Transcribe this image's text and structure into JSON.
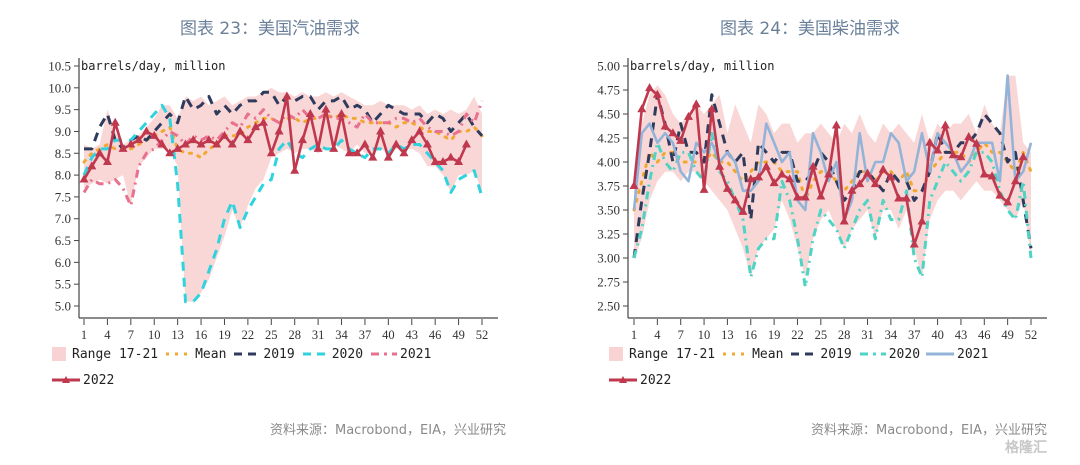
{
  "charts": [
    {
      "title": "图表 23：美国汽油需求",
      "unit_label": "barrels/day, million",
      "source": "资料来源：Macrobond，EIA，兴业研究",
      "legend": [
        "Range 17-21",
        "Mean",
        "2019",
        "2020",
        "2021",
        "2022"
      ]
    },
    {
      "title": "图表 24：美国柴油需求",
      "unit_label": "barrels/day, million",
      "source": "资料来源：Macrobond，EIA，兴业研究",
      "legend": [
        "Range 17-21",
        "Mean",
        "2019",
        "2020",
        "2021",
        "2022"
      ]
    }
  ],
  "watermark": "格隆汇",
  "colors": {
    "range": "#f9d3d3",
    "mean": "#f0a830",
    "y2019": "#2f3b5c",
    "y2020_gas": "#2fd3de",
    "y2020_dsl": "#4dd4c4",
    "y2021_gas": "#e8718f",
    "y2021_dsl": "#93b4d8",
    "y2022": "#c0384e"
  },
  "chart_data": [
    {
      "type": "line",
      "title": "图表 23：美国汽油需求",
      "ylabel": "barrels/day, million",
      "xlabel": "",
      "ylim": [
        5.0,
        10.5
      ],
      "yticks": [
        "10.5",
        "10.0",
        "9.5",
        "9.0",
        "8.5",
        "8.0",
        "7.5",
        "7.0",
        "6.5",
        "6.0",
        "5.5",
        "5.0"
      ],
      "xticks": [
        "1",
        "4",
        "7",
        "10",
        "13",
        "16",
        "19",
        "22",
        "25",
        "28",
        "31",
        "34",
        "37",
        "40",
        "43",
        "46",
        "49",
        "52"
      ],
      "x": [
        1,
        2,
        3,
        4,
        5,
        6,
        7,
        8,
        9,
        10,
        11,
        12,
        13,
        14,
        15,
        16,
        17,
        18,
        19,
        20,
        21,
        22,
        23,
        24,
        25,
        26,
        27,
        28,
        29,
        30,
        31,
        32,
        33,
        34,
        35,
        36,
        37,
        38,
        39,
        40,
        41,
        42,
        43,
        44,
        45,
        46,
        47,
        48,
        49,
        50,
        51,
        52
      ],
      "range_low": [
        7.7,
        7.8,
        7.9,
        7.8,
        7.9,
        8.0,
        7.3,
        8.2,
        8.4,
        8.6,
        8.6,
        8.6,
        8.2,
        5.1,
        5.1,
        5.3,
        5.6,
        6.1,
        6.6,
        7.2,
        6.8,
        7.3,
        7.7,
        7.9,
        8.4,
        8.5,
        8.6,
        8.5,
        8.6,
        8.6,
        8.5,
        8.6,
        8.7,
        8.6,
        8.5,
        8.7,
        8.5,
        8.5,
        8.6,
        8.5,
        8.6,
        8.6,
        8.6,
        8.5,
        8.2,
        8.2,
        8.0,
        7.6,
        8.0,
        8.0,
        8.1,
        7.6
      ],
      "range_high": [
        8.7,
        8.6,
        8.7,
        9.5,
        9.0,
        8.7,
        8.8,
        8.9,
        9.1,
        9.3,
        9.6,
        9.6,
        9.3,
        9.8,
        9.7,
        9.8,
        9.6,
        9.7,
        9.8,
        9.6,
        9.7,
        9.8,
        9.8,
        9.9,
        10.0,
        9.9,
        9.9,
        9.8,
        9.9,
        9.8,
        9.8,
        9.9,
        9.8,
        9.9,
        9.8,
        9.7,
        9.6,
        9.6,
        9.7,
        9.6,
        9.6,
        9.6,
        9.5,
        9.6,
        9.4,
        9.5,
        9.4,
        9.5,
        9.4,
        9.5,
        9.8,
        9.4
      ],
      "series": [
        {
          "name": "Mean",
          "values": [
            8.3,
            8.5,
            8.6,
            8.7,
            8.6,
            8.6,
            8.6,
            8.7,
            8.8,
            8.9,
            9.0,
            9.1,
            8.6,
            8.5,
            8.5,
            8.4,
            8.6,
            8.7,
            8.9,
            8.9,
            8.9,
            9.1,
            9.2,
            9.3,
            9.3,
            9.2,
            9.3,
            9.3,
            9.2,
            9.3,
            9.3,
            9.4,
            9.3,
            9.4,
            9.3,
            9.3,
            9.2,
            9.2,
            9.2,
            9.2,
            9.1,
            9.2,
            9.2,
            9.1,
            9.0,
            9.0,
            8.9,
            8.8,
            9.0,
            9.0,
            9.1,
            8.9
          ]
        },
        {
          "name": "2019",
          "values": [
            8.6,
            8.6,
            9.1,
            9.4,
            8.8,
            8.6,
            8.8,
            8.9,
            8.8,
            9.0,
            9.2,
            9.4,
            9.2,
            9.8,
            9.5,
            9.6,
            9.8,
            9.4,
            9.6,
            9.4,
            9.6,
            9.7,
            9.7,
            9.9,
            9.9,
            9.6,
            9.8,
            9.7,
            9.8,
            9.8,
            9.5,
            9.7,
            9.7,
            9.8,
            9.5,
            9.6,
            9.5,
            9.2,
            9.4,
            9.6,
            9.5,
            9.4,
            9.4,
            9.4,
            9.2,
            9.4,
            9.3,
            9.0,
            9.2,
            9.4,
            9.1,
            8.9
          ]
        },
        {
          "name": "2020",
          "values": [
            8.0,
            8.4,
            8.6,
            8.6,
            8.8,
            8.8,
            8.8,
            9.0,
            9.2,
            9.4,
            9.6,
            9.3,
            7.8,
            5.1,
            5.1,
            5.3,
            5.8,
            6.3,
            7.0,
            7.4,
            6.8,
            7.2,
            7.5,
            7.8,
            7.9,
            8.6,
            8.8,
            8.5,
            8.4,
            8.6,
            8.7,
            8.6,
            8.6,
            8.8,
            8.6,
            8.5,
            8.4,
            8.6,
            8.6,
            8.5,
            8.7,
            8.6,
            8.7,
            8.7,
            8.5,
            8.3,
            8.1,
            7.6,
            7.9,
            8.0,
            8.1,
            7.5
          ]
        },
        {
          "name": "2021",
          "values": [
            7.6,
            7.9,
            7.8,
            7.8,
            7.9,
            7.7,
            7.3,
            8.2,
            8.5,
            8.6,
            8.8,
            9.0,
            8.9,
            8.7,
            8.9,
            8.8,
            8.9,
            8.8,
            9.0,
            9.2,
            9.1,
            9.4,
            9.3,
            9.5,
            9.3,
            9.2,
            9.4,
            9.3,
            9.5,
            9.3,
            9.3,
            9.4,
            9.3,
            9.3,
            9.2,
            9.1,
            9.4,
            9.2,
            9.2,
            9.2,
            9.3,
            9.3,
            9.2,
            9.3,
            9.1,
            9.0,
            9.0,
            8.9,
            9.0,
            9.4,
            9.2,
            9.7
          ]
        },
        {
          "name": "2022",
          "values": [
            7.9,
            8.2,
            8.5,
            8.3,
            9.2,
            8.6,
            8.7,
            8.8,
            9.0,
            8.9,
            8.7,
            8.5,
            8.6,
            8.7,
            8.8,
            8.7,
            8.8,
            8.7,
            8.9,
            8.7,
            9.0,
            8.8,
            9.1,
            9.2,
            8.5,
            9.0,
            9.8,
            8.1,
            8.8,
            9.4,
            8.6,
            9.5,
            8.6,
            9.4,
            8.5,
            8.5,
            8.7,
            8.4,
            9.0,
            8.4,
            8.7,
            8.5,
            8.8,
            9.0,
            8.7,
            8.3,
            8.3,
            8.4,
            8.3,
            8.7
          ]
        }
      ],
      "legend": [
        "Range 17-21",
        "Mean",
        "2019",
        "2020",
        "2021",
        "2022"
      ],
      "legend_position": "bottom",
      "grid": false
    },
    {
      "type": "line",
      "title": "图表 24：美国柴油需求",
      "ylabel": "barrels/day, million",
      "xlabel": "",
      "ylim": [
        2.5,
        5.0
      ],
      "yticks": [
        "5.00",
        "4.75",
        "4.50",
        "4.25",
        "4.00",
        "3.75",
        "3.50",
        "3.25",
        "3.00",
        "2.75",
        "2.50"
      ],
      "xticks": [
        "1",
        "4",
        "7",
        "10",
        "13",
        "16",
        "19",
        "22",
        "25",
        "28",
        "31",
        "34",
        "37",
        "40",
        "43",
        "46",
        "49",
        "52"
      ],
      "x": [
        1,
        2,
        3,
        4,
        5,
        6,
        7,
        8,
        9,
        10,
        11,
        12,
        13,
        14,
        15,
        16,
        17,
        18,
        19,
        20,
        21,
        22,
        23,
        24,
        25,
        26,
        27,
        28,
        29,
        30,
        31,
        32,
        33,
        34,
        35,
        36,
        37,
        38,
        39,
        40,
        41,
        42,
        43,
        44,
        45,
        46,
        47,
        48,
        49,
        50,
        51,
        52
      ],
      "range_low": [
        3.0,
        3.2,
        3.6,
        3.8,
        3.9,
        3.9,
        3.8,
        3.9,
        3.9,
        3.8,
        3.7,
        3.6,
        3.5,
        3.3,
        3.1,
        2.8,
        3.1,
        3.2,
        3.3,
        3.6,
        3.4,
        3.1,
        2.8,
        3.2,
        3.4,
        3.5,
        3.3,
        3.1,
        3.3,
        3.4,
        3.5,
        3.2,
        3.5,
        3.5,
        3.3,
        3.5,
        3.1,
        2.8,
        3.4,
        3.6,
        3.7,
        3.7,
        3.6,
        3.7,
        3.8,
        3.7,
        3.7,
        3.6,
        3.5,
        3.4,
        3.6,
        3.0
      ],
      "range_high": [
        3.8,
        4.4,
        4.7,
        4.8,
        4.7,
        4.5,
        4.4,
        4.5,
        4.6,
        4.5,
        4.6,
        4.7,
        4.3,
        4.6,
        4.4,
        4.2,
        4.6,
        4.5,
        4.3,
        4.4,
        4.4,
        4.2,
        4.3,
        4.3,
        4.4,
        4.3,
        4.2,
        4.4,
        4.3,
        4.5,
        4.3,
        4.2,
        4.4,
        4.3,
        4.4,
        4.3,
        4.2,
        4.5,
        4.2,
        4.4,
        4.3,
        4.4,
        4.4,
        4.5,
        4.3,
        4.6,
        4.4,
        4.3,
        4.9,
        4.9,
        4.2,
        4.1
      ],
      "series": [
        {
          "name": "Mean",
          "values": [
            3.5,
            3.8,
            4.1,
            4.0,
            4.1,
            4.1,
            4.0,
            4.0,
            4.0,
            4.0,
            4.1,
            4.0,
            4.0,
            3.9,
            3.8,
            3.9,
            4.0,
            4.0,
            4.0,
            3.9,
            3.9,
            3.9,
            3.6,
            3.8,
            3.9,
            3.9,
            3.8,
            3.7,
            3.8,
            3.9,
            3.9,
            3.8,
            3.9,
            3.9,
            3.8,
            3.9,
            3.7,
            3.7,
            3.9,
            4.0,
            4.1,
            4.1,
            4.1,
            4.0,
            4.1,
            4.2,
            4.1,
            4.1,
            4.0,
            3.9,
            4.1,
            3.9
          ]
        },
        {
          "name": "2019",
          "values": [
            3.0,
            3.6,
            4.1,
            4.7,
            4.4,
            4.0,
            4.4,
            4.1,
            4.1,
            4.0,
            4.7,
            4.4,
            4.1,
            4.0,
            4.1,
            3.4,
            4.2,
            4.1,
            4.0,
            4.1,
            4.1,
            3.8,
            3.8,
            3.9,
            4.1,
            4.0,
            3.8,
            3.6,
            3.7,
            3.9,
            3.9,
            3.8,
            3.7,
            3.9,
            3.8,
            3.8,
            3.6,
            3.7,
            3.9,
            4.3,
            4.1,
            4.1,
            4.2,
            4.2,
            4.3,
            4.5,
            4.4,
            4.3,
            4.0,
            4.1,
            3.6,
            3.1
          ]
        },
        {
          "name": "2020",
          "values": [
            3.0,
            3.3,
            3.8,
            4.2,
            4.0,
            3.9,
            4.1,
            4.1,
            3.9,
            3.8,
            4.3,
            3.9,
            3.8,
            3.6,
            3.4,
            2.8,
            3.1,
            3.2,
            3.2,
            3.8,
            3.6,
            3.2,
            2.7,
            3.2,
            3.5,
            3.4,
            3.3,
            3.1,
            3.3,
            3.5,
            3.6,
            3.2,
            3.6,
            3.4,
            3.4,
            3.7,
            3.0,
            2.8,
            3.6,
            3.8,
            4.0,
            3.9,
            3.8,
            3.9,
            4.1,
            4.1,
            4.0,
            3.7,
            3.5,
            3.4,
            3.8,
            3.0
          ]
        },
        {
          "name": "2021",
          "values": [
            3.5,
            4.3,
            4.4,
            4.2,
            4.3,
            4.2,
            3.9,
            3.8,
            4.2,
            4.1,
            4.2,
            4.0,
            4.1,
            4.0,
            3.7,
            3.7,
            3.8,
            4.4,
            4.2,
            4.0,
            4.1,
            3.6,
            3.5,
            4.3,
            4.1,
            3.8,
            4.0,
            3.4,
            3.6,
            4.3,
            3.8,
            4.0,
            4.0,
            4.3,
            4.2,
            3.8,
            3.9,
            4.3,
            3.9,
            4.3,
            4.2,
            4.1,
            3.9,
            4.0,
            4.2,
            4.2,
            4.2,
            3.8,
            4.9,
            3.8,
            3.9,
            4.2
          ]
        },
        {
          "name": "2022",
          "values": [
            3.75,
            4.55,
            4.77,
            4.7,
            4.37,
            4.3,
            4.22,
            4.47,
            4.6,
            3.71,
            4.55,
            3.95,
            3.72,
            3.6,
            3.48,
            3.82,
            3.84,
            3.95,
            3.78,
            3.87,
            3.82,
            3.63,
            3.63,
            3.95,
            3.64,
            3.87,
            4.38,
            3.38,
            3.7,
            3.77,
            3.88,
            3.77,
            3.92,
            3.84,
            3.62,
            3.62,
            3.14,
            3.38,
            4.2,
            4.12,
            4.38,
            4.07,
            4.05,
            4.26,
            4.19,
            3.87,
            3.85,
            3.65,
            3.58,
            3.8,
            4.05
          ]
        }
      ],
      "legend": [
        "Range 17-21",
        "Mean",
        "2019",
        "2020",
        "2021",
        "2022"
      ],
      "legend_position": "bottom",
      "grid": false
    }
  ]
}
